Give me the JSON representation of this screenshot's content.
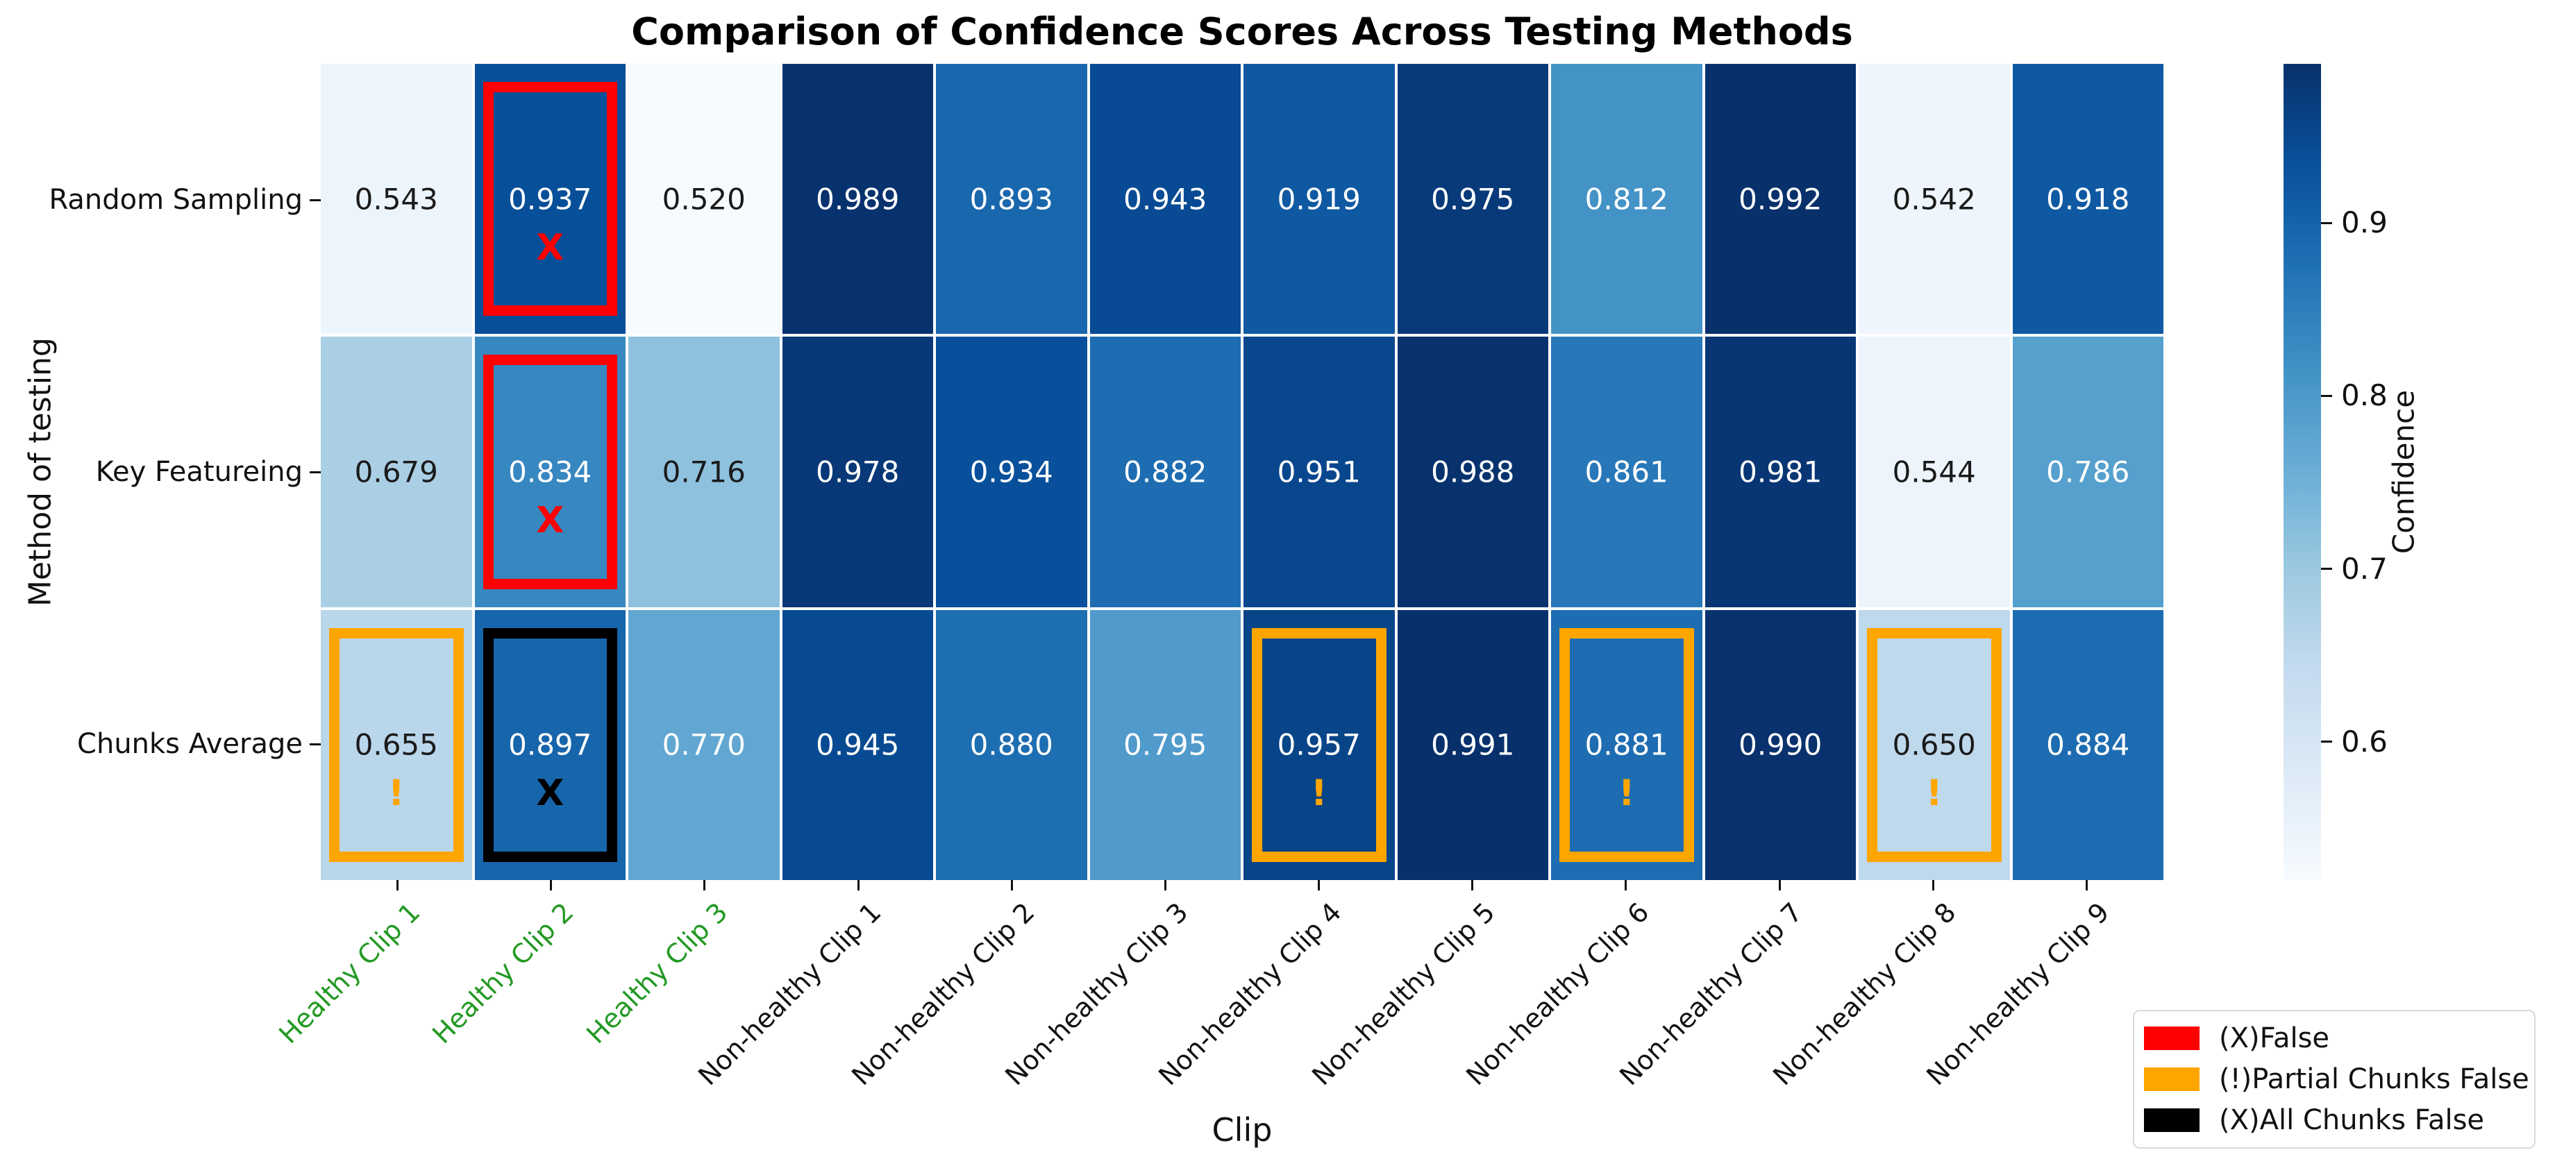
{
  "chart_data": {
    "type": "heatmap",
    "title": "Comparison of Confidence Scores Across Testing Methods",
    "xlabel": "Clip",
    "ylabel": "Method of testing",
    "colorbar": {
      "label": "Confidence",
      "tick_values": [
        0.9,
        0.8,
        0.7,
        0.6
      ],
      "tick_labels": [
        "0.9",
        "0.8",
        "0.7",
        "0.6"
      ]
    },
    "vmin": 0.52,
    "vmax": 0.992,
    "colormap": "Blues",
    "colormap_stops": [
      "#f7fbff",
      "#deebf7",
      "#c6dbef",
      "#9ecae1",
      "#6baed6",
      "#4292c6",
      "#2171b5",
      "#08519c",
      "#08306b"
    ],
    "healthy_label_color": "#229922",
    "unhealthy_label_color": "#111111",
    "x_categories": [
      {
        "label": "Healthy Clip 1",
        "healthy": true
      },
      {
        "label": "Healthy Clip 2",
        "healthy": true
      },
      {
        "label": "Healthy Clip 3",
        "healthy": true
      },
      {
        "label": "Non-healthy Clip 1",
        "healthy": false
      },
      {
        "label": "Non-healthy Clip 2",
        "healthy": false
      },
      {
        "label": "Non-healthy Clip 3",
        "healthy": false
      },
      {
        "label": "Non-healthy Clip 4",
        "healthy": false
      },
      {
        "label": "Non-healthy Clip 5",
        "healthy": false
      },
      {
        "label": "Non-healthy Clip 6",
        "healthy": false
      },
      {
        "label": "Non-healthy Clip 7",
        "healthy": false
      },
      {
        "label": "Non-healthy Clip 8",
        "healthy": false
      },
      {
        "label": "Non-healthy Clip 9",
        "healthy": false
      }
    ],
    "rows": [
      {
        "method": "Random Sampling",
        "values": [
          0.543,
          0.937,
          0.52,
          0.989,
          0.893,
          0.943,
          0.919,
          0.975,
          0.812,
          0.992,
          0.542,
          0.918
        ],
        "marks": [
          null,
          {
            "type": "X",
            "color": "red"
          },
          null,
          null,
          null,
          null,
          null,
          null,
          null,
          null,
          null,
          null
        ]
      },
      {
        "method": "Key Featureing",
        "values": [
          0.679,
          0.834,
          0.716,
          0.978,
          0.934,
          0.882,
          0.951,
          0.988,
          0.861,
          0.981,
          0.544,
          0.786
        ],
        "marks": [
          null,
          {
            "type": "X",
            "color": "red"
          },
          null,
          null,
          null,
          null,
          null,
          null,
          null,
          null,
          null,
          null
        ]
      },
      {
        "method": "Chunks Average",
        "values": [
          0.655,
          0.897,
          0.77,
          0.945,
          0.88,
          0.795,
          0.957,
          0.991,
          0.881,
          0.99,
          0.65,
          0.884
        ],
        "marks": [
          {
            "type": "!",
            "color": "orange"
          },
          {
            "type": "X",
            "color": "black"
          },
          null,
          null,
          null,
          null,
          {
            "type": "!",
            "color": "orange"
          },
          null,
          {
            "type": "!",
            "color": "orange"
          },
          null,
          {
            "type": "!",
            "color": "orange"
          },
          null
        ]
      }
    ],
    "mark_colors": {
      "red": "#ff0000",
      "orange": "#ffa500",
      "black": "#000000"
    },
    "legend": [
      {
        "color": "#ff0000",
        "label": "(X)False"
      },
      {
        "color": "#ffa500",
        "label": "(!)Partial Chunks False"
      },
      {
        "color": "#000000",
        "label": "(X)All Chunks False"
      }
    ]
  }
}
